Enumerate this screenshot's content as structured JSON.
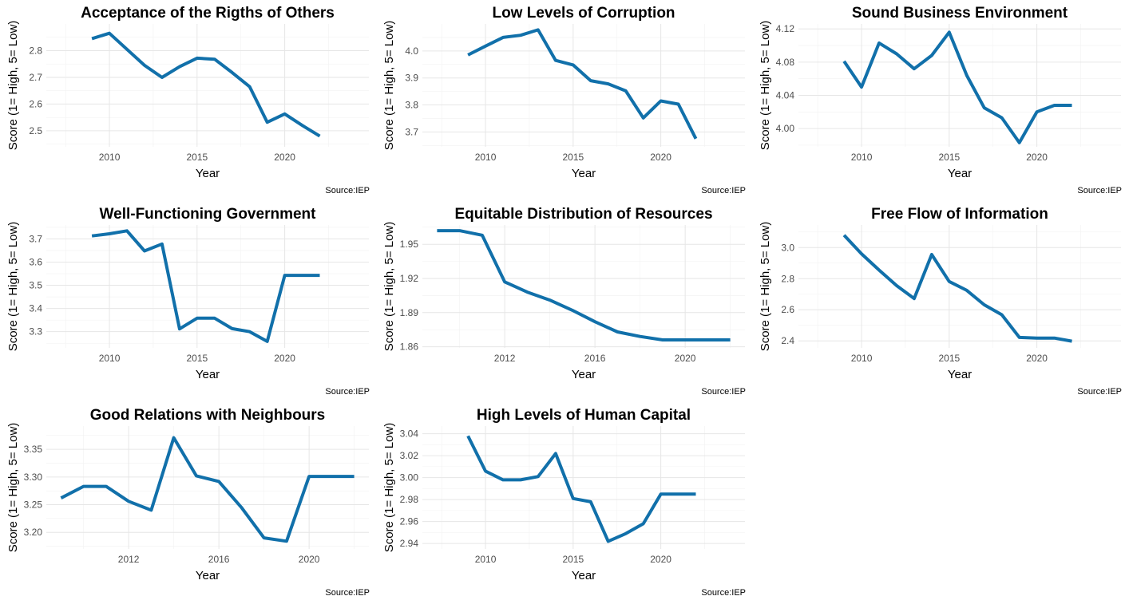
{
  "chart_data": [
    {
      "type": "line",
      "title": "Acceptance of the Rigths of Others",
      "xlabel": "Year",
      "ylabel": "Score (1= High, 5= Low)",
      "source": "Source:IEP",
      "xlim": [
        2006.4,
        2024.8
      ],
      "ylim": [
        2.44,
        2.9
      ],
      "xticks": [
        2010,
        2015,
        2020
      ],
      "yticks": [
        2.5,
        2.6,
        2.7,
        2.8
      ],
      "x": [
        2009,
        2010,
        2011,
        2012,
        2013,
        2014,
        2015,
        2016,
        2017,
        2018,
        2019,
        2020,
        2021,
        2022
      ],
      "values": [
        2.845,
        2.865,
        2.805,
        2.745,
        2.7,
        2.74,
        2.772,
        2.768,
        2.718,
        2.665,
        2.532,
        2.563,
        2.52,
        2.48
      ],
      "color": "#1170AA"
    },
    {
      "type": "line",
      "title": "Low Levels of Corruption",
      "xlabel": "Year",
      "ylabel": "Score (1= High, 5= Low)",
      "source": "Source:IEP",
      "xlim": [
        2006.4,
        2024.8
      ],
      "ylim": [
        3.645,
        4.1
      ],
      "xticks": [
        2010,
        2015,
        2020
      ],
      "yticks": [
        3.7,
        3.8,
        3.9,
        4.0
      ],
      "x": [
        2009,
        2010,
        2011,
        2012,
        2013,
        2014,
        2015,
        2016,
        2017,
        2018,
        2019,
        2020,
        2021,
        2022
      ],
      "values": [
        3.985,
        4.018,
        4.05,
        4.058,
        4.078,
        3.965,
        3.948,
        3.89,
        3.878,
        3.852,
        3.752,
        3.815,
        3.803,
        3.675
      ],
      "color": "#1170AA"
    },
    {
      "type": "line",
      "title": "Sound Business Environment",
      "xlabel": "Year",
      "ylabel": "Score (1= High, 5= Low)",
      "source": "Source:IEP",
      "xlim": [
        2006.4,
        2024.8
      ],
      "ylim": [
        3.978,
        4.126
      ],
      "xticks": [
        2010,
        2015,
        2020
      ],
      "yticks": [
        4.0,
        4.04,
        4.08,
        4.12
      ],
      "x": [
        2009,
        2010,
        2011,
        2012,
        2013,
        2014,
        2015,
        2016,
        2017,
        2018,
        2019,
        2020,
        2021,
        2022
      ],
      "values": [
        4.081,
        4.05,
        4.103,
        4.09,
        4.072,
        4.088,
        4.116,
        4.064,
        4.025,
        4.013,
        3.983,
        4.02,
        4.028,
        4.028
      ],
      "color": "#1170AA"
    },
    {
      "type": "line",
      "title": "Well-Functioning Government",
      "xlabel": "Year",
      "ylabel": "Score (1= High, 5= Low)",
      "source": "Source:IEP",
      "xlim": [
        2006.4,
        2024.8
      ],
      "ylim": [
        3.23,
        3.76
      ],
      "xticks": [
        2010,
        2015,
        2020
      ],
      "yticks": [
        3.3,
        3.4,
        3.5,
        3.6,
        3.7
      ],
      "x": [
        2009,
        2010,
        2011,
        2012,
        2013,
        2014,
        2015,
        2016,
        2017,
        2018,
        2019,
        2020,
        2021,
        2022
      ],
      "values": [
        3.713,
        3.722,
        3.735,
        3.648,
        3.678,
        3.312,
        3.358,
        3.358,
        3.313,
        3.3,
        3.258,
        3.543,
        3.543,
        3.543
      ],
      "color": "#1170AA"
    },
    {
      "type": "line",
      "title": "Equitable Distribution of Resources",
      "xlabel": "Year",
      "ylabel": "Score (1= High, 5= Low)",
      "source": "Source:IEP",
      "xlim": [
        2008.35,
        2022.65
      ],
      "ylim": [
        1.859,
        1.967
      ],
      "xticks": [
        2012,
        2016,
        2020
      ],
      "yticks": [
        1.86,
        1.89,
        1.92,
        1.95
      ],
      "x": [
        2009,
        2010,
        2011,
        2012,
        2013,
        2014,
        2015,
        2016,
        2017,
        2018,
        2019,
        2020,
        2021,
        2022
      ],
      "values": [
        1.962,
        1.962,
        1.958,
        1.917,
        1.908,
        1.901,
        1.892,
        1.882,
        1.873,
        1.869,
        1.866,
        1.866,
        1.866,
        1.866
      ],
      "color": "#1170AA"
    },
    {
      "type": "line",
      "title": "Free Flow of Information",
      "xlabel": "Year",
      "ylabel": "Score (1= High, 5= Low)",
      "source": "Source:IEP",
      "xlim": [
        2006.4,
        2024.8
      ],
      "ylim": [
        2.355,
        3.145
      ],
      "xticks": [
        2010,
        2015,
        2020
      ],
      "yticks": [
        2.4,
        2.6,
        2.8,
        3.0
      ],
      "x": [
        2009,
        2010,
        2011,
        2012,
        2013,
        2014,
        2015,
        2016,
        2017,
        2018,
        2019,
        2020,
        2021,
        2022
      ],
      "values": [
        3.08,
        2.96,
        2.855,
        2.755,
        2.672,
        2.955,
        2.782,
        2.725,
        2.632,
        2.568,
        2.422,
        2.418,
        2.418,
        2.398
      ],
      "color": "#1170AA"
    },
    {
      "type": "line",
      "title": "Good Relations with Neighbours",
      "xlabel": "Year",
      "ylabel": "Score (1= High, 5= Low)",
      "source": "Source:IEP",
      "xlim": [
        2008.35,
        2022.65
      ],
      "ylim": [
        3.17,
        3.392
      ],
      "xticks": [
        2012,
        2016,
        2020
      ],
      "yticks": [
        3.2,
        3.25,
        3.3,
        3.35
      ],
      "x": [
        2009,
        2010,
        2011,
        2012,
        2013,
        2014,
        2015,
        2016,
        2017,
        2018,
        2019,
        2020,
        2021,
        2022
      ],
      "values": [
        3.262,
        3.283,
        3.283,
        3.256,
        3.24,
        3.371,
        3.302,
        3.292,
        3.245,
        3.19,
        3.184,
        3.301,
        3.301,
        3.301
      ],
      "color": "#1170AA"
    },
    {
      "type": "line",
      "title": "High Levels of Human Capital",
      "xlabel": "Year",
      "ylabel": "Score (1= High, 5= Low)",
      "source": "Source:IEP",
      "xlim": [
        2006.4,
        2024.8
      ],
      "ylim": [
        2.935,
        3.047
      ],
      "xticks": [
        2010,
        2015,
        2020
      ],
      "yticks": [
        2.94,
        2.96,
        2.98,
        3.0,
        3.02,
        3.04
      ],
      "x": [
        2009,
        2010,
        2011,
        2012,
        2013,
        2014,
        2015,
        2016,
        2017,
        2018,
        2019,
        2020,
        2021,
        2022
      ],
      "values": [
        3.038,
        3.006,
        2.998,
        2.998,
        3.001,
        3.022,
        2.981,
        2.978,
        2.942,
        2.949,
        2.958,
        2.985,
        2.985,
        2.985
      ],
      "color": "#1170AA"
    }
  ]
}
